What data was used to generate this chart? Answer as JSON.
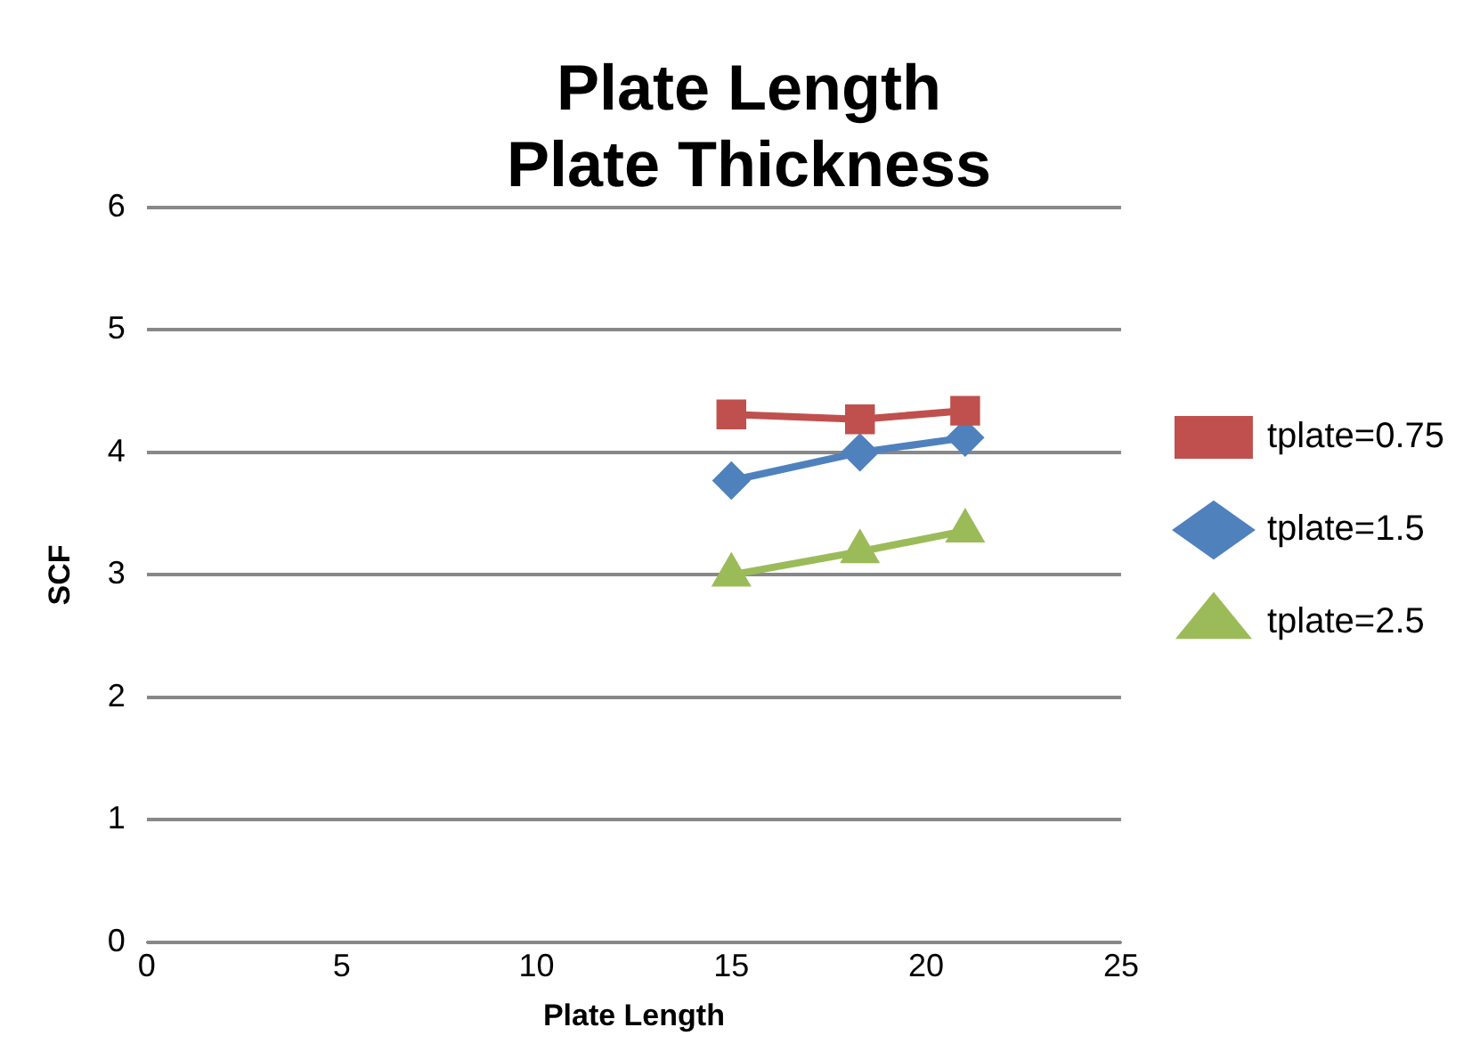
{
  "chart_data": {
    "type": "line",
    "title": "Plate Length\nPlate Thickness",
    "xlabel": "Plate Length",
    "ylabel": "SCF",
    "xlim": [
      0,
      25
    ],
    "xticks": [
      0,
      5,
      10,
      15,
      20,
      25
    ],
    "ylim": [
      0,
      6
    ],
    "yticks": [
      0,
      1,
      2,
      3,
      4,
      5,
      6
    ],
    "grid": "y",
    "legend": "right",
    "series": [
      {
        "name": "tplate=0.75",
        "color": "#c0504d",
        "marker": "square",
        "x": [
          15,
          18.3,
          21
        ],
        "values": [
          4.31,
          4.27,
          4.34
        ]
      },
      {
        "name": "tplate=1.5",
        "color": "#4f81bd",
        "marker": "diamond",
        "x": [
          15,
          18.3,
          21
        ],
        "values": [
          3.77,
          4.0,
          4.12
        ]
      },
      {
        "name": "tplate=2.5",
        "color": "#9bbb59",
        "marker": "triangle",
        "x": [
          15,
          18.3,
          21
        ],
        "values": [
          3.0,
          3.19,
          3.36
        ]
      }
    ]
  }
}
